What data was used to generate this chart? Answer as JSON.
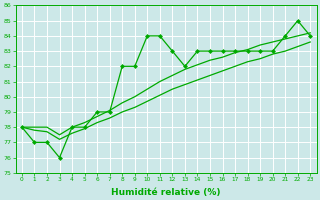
{
  "xlabel": "Humidité relative (%)",
  "xlim": [
    -0.5,
    23.5
  ],
  "ylim": [
    75,
    86
  ],
  "yticks": [
    75,
    76,
    77,
    78,
    79,
    80,
    81,
    82,
    83,
    84,
    85,
    86
  ],
  "xticks": [
    0,
    1,
    2,
    3,
    4,
    5,
    6,
    7,
    8,
    9,
    10,
    11,
    12,
    13,
    14,
    15,
    16,
    17,
    18,
    19,
    20,
    21,
    22,
    23
  ],
  "background_color": "#cce8e8",
  "grid_color": "#aacccc",
  "line_color": "#00aa00",
  "y_main": [
    78,
    77,
    77,
    76,
    78,
    78,
    79,
    79,
    82,
    82,
    84,
    84,
    83,
    82,
    83,
    83,
    83,
    83,
    83,
    83,
    83,
    84,
    85,
    84
  ],
  "y_low": [
    78.0,
    77.8,
    77.7,
    77.2,
    77.6,
    77.9,
    78.3,
    78.6,
    79.0,
    79.3,
    79.7,
    80.1,
    80.5,
    80.8,
    81.1,
    81.4,
    81.7,
    82.0,
    82.3,
    82.5,
    82.8,
    83.0,
    83.3,
    83.6
  ],
  "y_mid": [
    78.0,
    78.0,
    78.0,
    77.5,
    78.0,
    78.3,
    78.7,
    79.1,
    79.6,
    80.0,
    80.5,
    81.0,
    81.4,
    81.8,
    82.1,
    82.4,
    82.6,
    82.9,
    83.1,
    83.4,
    83.6,
    83.8,
    84.0,
    84.2
  ]
}
